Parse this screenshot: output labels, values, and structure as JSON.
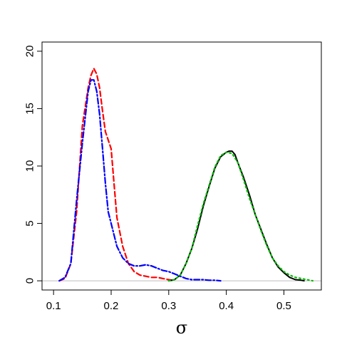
{
  "chart_data": {
    "type": "line",
    "title": "",
    "xlabel": "σ",
    "ylabel": "",
    "xlim": [
      0.08,
      0.565
    ],
    "ylim": [
      -0.8,
      20.8
    ],
    "grid": false,
    "legend": "none",
    "x_ticks": [
      {
        "value": 0.1,
        "label": "0.1"
      },
      {
        "value": 0.2,
        "label": "0.2"
      },
      {
        "value": 0.3,
        "label": "0.3"
      },
      {
        "value": 0.4,
        "label": "0.4"
      },
      {
        "value": 0.5,
        "label": "0.5"
      }
    ],
    "y_ticks": [
      {
        "value": 0,
        "label": "0"
      },
      {
        "value": 5,
        "label": "5"
      },
      {
        "value": 10,
        "label": "10"
      },
      {
        "value": 15,
        "label": "15"
      },
      {
        "value": 20,
        "label": "20"
      }
    ],
    "baseline": {
      "y": 0,
      "color": "#bebebe"
    },
    "series": [
      {
        "color": "#ff0000",
        "style": "dashed",
        "x": [
          0.11,
          0.12,
          0.13,
          0.14,
          0.15,
          0.16,
          0.165,
          0.17,
          0.175,
          0.18,
          0.185,
          0.19,
          0.2,
          0.205,
          0.21,
          0.22,
          0.23,
          0.24,
          0.25,
          0.26,
          0.27,
          0.28,
          0.29,
          0.3,
          0.31
        ],
        "y": [
          0,
          0.2,
          1.5,
          6.0,
          13.5,
          16.8,
          17.9,
          18.5,
          18.0,
          16.8,
          14.8,
          13.0,
          11.5,
          8.5,
          5.5,
          3.0,
          1.5,
          0.8,
          0.5,
          0.4,
          0.3,
          0.3,
          0.2,
          0.1,
          0
        ]
      },
      {
        "color": "#0000ff",
        "style": "dashdot",
        "x": [
          0.11,
          0.12,
          0.13,
          0.14,
          0.15,
          0.16,
          0.165,
          0.17,
          0.175,
          0.18,
          0.185,
          0.19,
          0.195,
          0.2,
          0.21,
          0.22,
          0.23,
          0.24,
          0.25,
          0.26,
          0.27,
          0.28,
          0.29,
          0.3,
          0.31,
          0.32,
          0.33,
          0.34,
          0.35,
          0.36,
          0.37,
          0.38,
          0.39
        ],
        "y": [
          0,
          0.3,
          1.5,
          7.0,
          12.0,
          16.5,
          17.5,
          17.5,
          16.5,
          14.5,
          11.5,
          8.5,
          6.0,
          5.0,
          3.0,
          2.0,
          1.5,
          1.3,
          1.3,
          1.4,
          1.3,
          1.1,
          0.9,
          0.8,
          0.6,
          0.4,
          0.2,
          0.1,
          0.1,
          0.1,
          0.05,
          0.05,
          0
        ]
      },
      {
        "color": "#000000",
        "style": "solid",
        "x": [
          0.3,
          0.31,
          0.32,
          0.33,
          0.34,
          0.35,
          0.36,
          0.37,
          0.38,
          0.39,
          0.4,
          0.405,
          0.41,
          0.415,
          0.42,
          0.43,
          0.44,
          0.45,
          0.46,
          0.47,
          0.48,
          0.49,
          0.5,
          0.51,
          0.52,
          0.53,
          0.535
        ],
        "y": [
          0,
          0.1,
          0.5,
          1.5,
          2.8,
          4.5,
          6.5,
          8.2,
          9.8,
          10.8,
          11.2,
          11.3,
          11.3,
          11.0,
          10.3,
          9.0,
          7.5,
          5.8,
          4.5,
          3.2,
          2.0,
          1.2,
          0.7,
          0.3,
          0.1,
          0.05,
          0
        ]
      },
      {
        "color": "#00bb00",
        "style": "dotted",
        "x": [
          0.3,
          0.31,
          0.32,
          0.33,
          0.34,
          0.35,
          0.36,
          0.37,
          0.38,
          0.39,
          0.4,
          0.41,
          0.42,
          0.43,
          0.44,
          0.45,
          0.46,
          0.47,
          0.48,
          0.49,
          0.5,
          0.51,
          0.52,
          0.53,
          0.54,
          0.55
        ],
        "y": [
          0,
          0.1,
          0.5,
          1.5,
          2.8,
          4.8,
          6.7,
          8.3,
          9.9,
          10.9,
          11.2,
          11.1,
          10.3,
          8.8,
          7.2,
          5.8,
          4.4,
          3.1,
          2.0,
          1.3,
          0.8,
          0.5,
          0.3,
          0.2,
          0.1,
          0
        ]
      }
    ]
  }
}
